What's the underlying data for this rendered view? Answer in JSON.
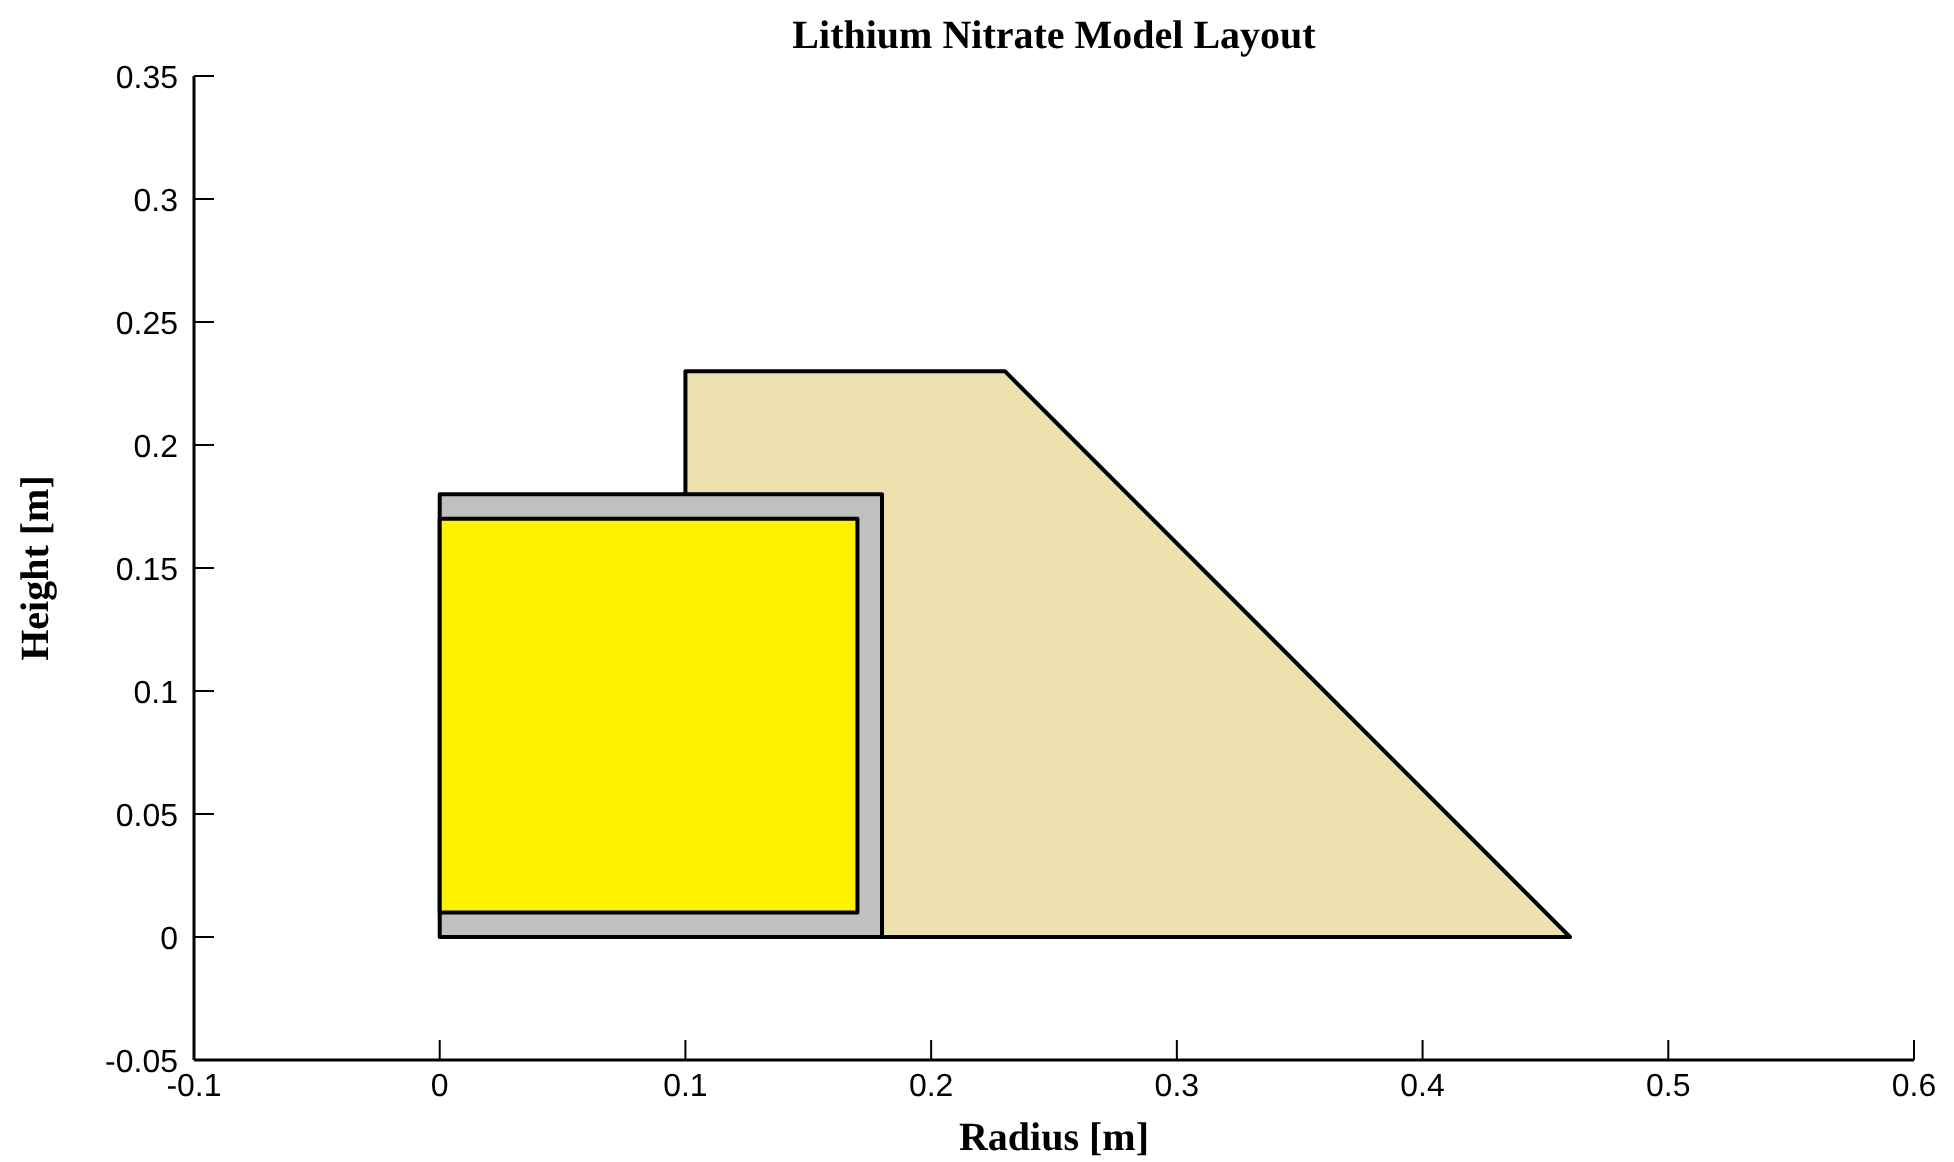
{
  "chart_data": {
    "type": "area",
    "title": "Lithium Nitrate Model Layout",
    "xlabel": "Radius [m]",
    "ylabel": "Height [m]",
    "xlim": [
      -0.1,
      0.6
    ],
    "xticks": [
      -0.1,
      0,
      0.1,
      0.2,
      0.3,
      0.4,
      0.5,
      0.6
    ],
    "ylim": [
      -0.05,
      0.35
    ],
    "yticks": [
      -0.05,
      0,
      0.05,
      0.1,
      0.15,
      0.2,
      0.25,
      0.3,
      0.35
    ],
    "series": [
      {
        "color": "#ede1b0",
        "x": [
          0.1,
          0.1,
          0.23,
          0.46
        ],
        "values": [
          0,
          0.23,
          0.23,
          0
        ]
      },
      {
        "color": "#c0c0c0",
        "x": [
          0,
          0,
          0.18,
          0.18
        ],
        "values": [
          0,
          0.18,
          0.18,
          0
        ]
      },
      {
        "color": "#fff200",
        "x": [
          0,
          0,
          0.17,
          0.17
        ],
        "values": [
          0.01,
          0.17,
          0.17,
          0.01
        ]
      }
    ]
  }
}
